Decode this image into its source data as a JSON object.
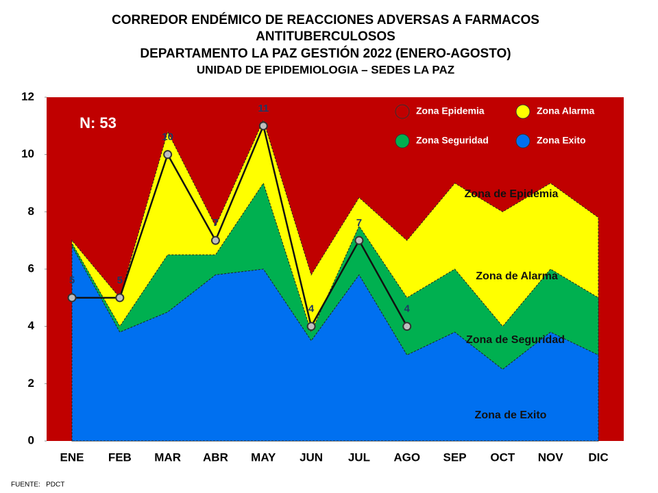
{
  "chart_data": {
    "type": "area",
    "title_lines": [
      "CORREDOR ENDÉMICO DE REACCIONES ADVERSAS A FARMACOS",
      "ANTITUBERCULOSOS",
      "DEPARTAMENTO LA PAZ GESTIÓN 2022 (ENERO-AGOSTO)",
      "UNIDAD DE EPIDEMIOLOGIA – SEDES LA PAZ"
    ],
    "categories": [
      "ENE",
      "FEB",
      "MAR",
      "ABR",
      "MAY",
      "JUN",
      "JUL",
      "AGO",
      "SEP",
      "OCT",
      "NOV",
      "DIC"
    ],
    "background_zone": {
      "name": "Zona Epidemia",
      "color": "#c00000"
    },
    "series": [
      {
        "name": "Zona Alarma",
        "color": "#ffff00",
        "values": [
          7,
          5,
          10.8,
          7.5,
          11.2,
          5.8,
          8.5,
          7,
          9,
          8,
          9,
          7.8
        ]
      },
      {
        "name": "Zona Seguridad",
        "color": "#00b050",
        "values": [
          6.9,
          4,
          6.5,
          6.5,
          9,
          3.8,
          7.5,
          5,
          6,
          4,
          6,
          5
        ]
      },
      {
        "name": "Zona Exito",
        "color": "#0070f0",
        "values": [
          6.8,
          3.8,
          4.5,
          5.8,
          6,
          3.5,
          5.8,
          3,
          3.8,
          2.5,
          3.8,
          3
        ]
      }
    ],
    "cases": {
      "values": [
        5,
        5,
        10,
        7,
        11,
        4,
        7,
        4,
        null,
        null,
        null,
        null
      ]
    },
    "ylim": [
      0,
      12
    ],
    "yticks": [
      0,
      2,
      4,
      6,
      8,
      10,
      12
    ],
    "annotations": [
      "N: 53",
      "Zona de Epidemia",
      "Zona de Alarma",
      "Zona de Seguridad",
      "Zona de Exito"
    ],
    "source": "FUENTE:   PDCT"
  }
}
